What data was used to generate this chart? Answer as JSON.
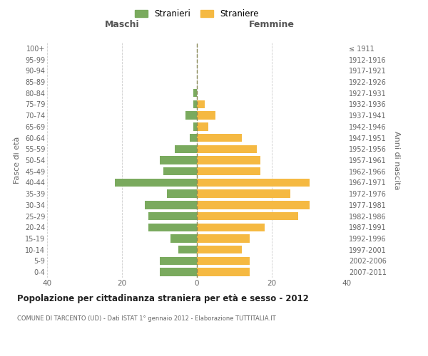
{
  "age_groups": [
    "0-4",
    "5-9",
    "10-14",
    "15-19",
    "20-24",
    "25-29",
    "30-34",
    "35-39",
    "40-44",
    "45-49",
    "50-54",
    "55-59",
    "60-64",
    "65-69",
    "70-74",
    "75-79",
    "80-84",
    "85-89",
    "90-94",
    "95-99",
    "100+"
  ],
  "birth_years": [
    "2007-2011",
    "2002-2006",
    "1997-2001",
    "1992-1996",
    "1987-1991",
    "1982-1986",
    "1977-1981",
    "1972-1976",
    "1967-1971",
    "1962-1966",
    "1957-1961",
    "1952-1956",
    "1947-1951",
    "1942-1946",
    "1937-1941",
    "1932-1936",
    "1927-1931",
    "1922-1926",
    "1917-1921",
    "1912-1916",
    "≤ 1911"
  ],
  "maschi": [
    10,
    10,
    5,
    7,
    13,
    13,
    14,
    8,
    22,
    9,
    10,
    6,
    2,
    1,
    3,
    1,
    1,
    0,
    0,
    0,
    0
  ],
  "femmine": [
    14,
    14,
    12,
    14,
    18,
    27,
    30,
    25,
    30,
    17,
    17,
    16,
    12,
    3,
    5,
    2,
    0,
    0,
    0,
    0,
    0
  ],
  "color_maschi": "#7aaa5e",
  "color_femmine": "#f5b942",
  "background_color": "#ffffff",
  "grid_color": "#cccccc",
  "title": "Popolazione per cittadinanza straniera per età e sesso - 2012",
  "subtitle": "COMUNE DI TARCENTO (UD) - Dati ISTAT 1° gennaio 2012 - Elaborazione TUTTITALIA.IT",
  "xlabel_left": "Maschi",
  "xlabel_right": "Femmine",
  "ylabel_left": "Fasce di età",
  "ylabel_right": "Anni di nascita",
  "xlim": 40,
  "legend_stranieri": "Stranieri",
  "legend_straniere": "Straniere"
}
